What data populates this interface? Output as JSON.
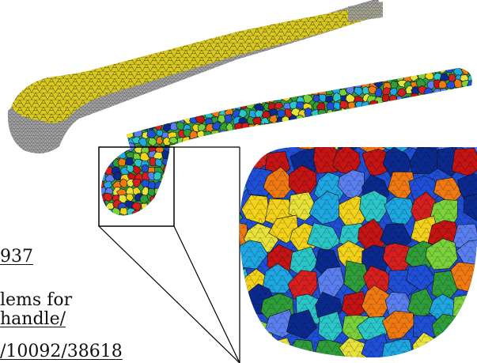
{
  "figure": {
    "description_colors": {
      "gold_mesh": "#d4c41f",
      "gray_mesh": "#8a8a8a",
      "cell_palette": [
        "#d62020",
        "#f07a12",
        "#f2d21a",
        "#2f9e3a",
        "#1f4fd6",
        "#1ea7e0",
        "#7ad13c",
        "#0b2a8f",
        "#e8e23a",
        "#c41414",
        "#2ac6c8",
        "#5b7ff0"
      ],
      "inset_border": "#000000"
    }
  },
  "text_fragments": {
    "line1": "937",
    "line2": "lems for",
    "line3": "handle/",
    "line4": "/10092/38618"
  }
}
